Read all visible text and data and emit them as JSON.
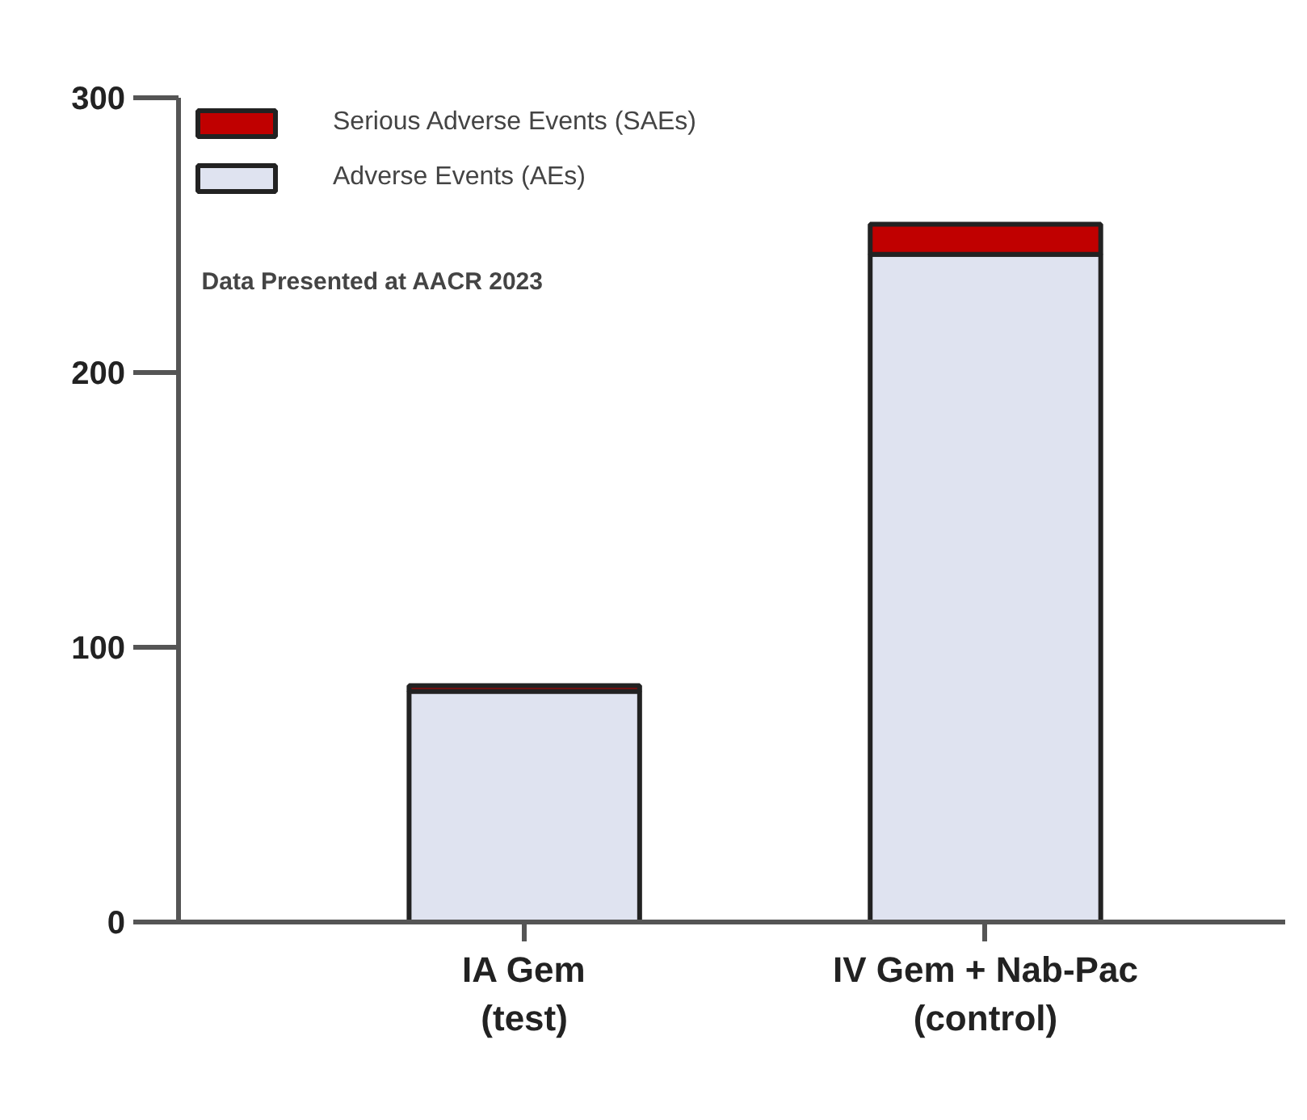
{
  "chart_data": {
    "type": "bar",
    "stacked": true,
    "categories": [
      "IA Gem\n(test)",
      "IV Gem + Nab-Pac\n(control)"
    ],
    "series": [
      {
        "name": "Adverse Events (AEs)",
        "color": "#dfe3f0",
        "values": [
          84,
          243
        ]
      },
      {
        "name": "Serious Adverse Events (SAEs)",
        "color": "#c00000",
        "values": [
          2,
          11
        ]
      }
    ],
    "ylim": [
      0,
      300
    ],
    "yticks": [
      0,
      100,
      200,
      300
    ],
    "grid": false,
    "legend": "top left",
    "annotations": [
      "Data Presented at AACR 2023"
    ]
  }
}
